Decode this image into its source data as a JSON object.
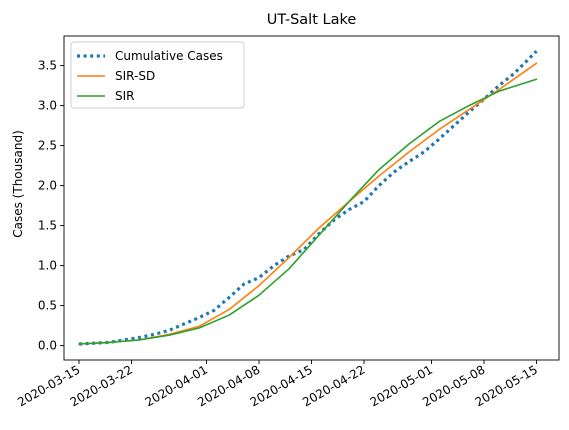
{
  "chart_data": {
    "type": "line",
    "title": "UT-Salt Lake",
    "xlabel": "",
    "ylabel": "Cases (Thousand)",
    "xlim": [
      "2020-03-13",
      "2020-05-18"
    ],
    "ylim": [
      -0.18,
      3.87
    ],
    "grid": false,
    "legend_position": "top-left",
    "x_ticks": [
      "2020-03-15",
      "2020-03-22",
      "2020-04-01",
      "2020-04-08",
      "2020-04-15",
      "2020-04-22",
      "2020-05-01",
      "2020-05-08",
      "2020-05-15"
    ],
    "y_ticks": [
      "0.0",
      "0.5",
      "1.0",
      "1.5",
      "2.0",
      "2.5",
      "3.0",
      "3.5"
    ],
    "series": [
      {
        "name": "Cumulative Cases",
        "color": "#1f77b4",
        "style": "dotted",
        "x": [
          "2020-03-15",
          "2020-03-17",
          "2020-03-19",
          "2020-03-21",
          "2020-03-23",
          "2020-03-25",
          "2020-03-27",
          "2020-03-29",
          "2020-03-31",
          "2020-04-02",
          "2020-04-04",
          "2020-04-06",
          "2020-04-08",
          "2020-04-10",
          "2020-04-12",
          "2020-04-14",
          "2020-04-16",
          "2020-04-18",
          "2020-04-20",
          "2020-04-22",
          "2020-04-24",
          "2020-04-26",
          "2020-04-28",
          "2020-04-30",
          "2020-05-02",
          "2020-05-04",
          "2020-05-06",
          "2020-05-08",
          "2020-05-10",
          "2020-05-12",
          "2020-05-15"
        ],
        "values": [
          0.02,
          0.03,
          0.04,
          0.07,
          0.1,
          0.14,
          0.19,
          0.27,
          0.35,
          0.44,
          0.6,
          0.77,
          0.85,
          1.0,
          1.12,
          1.2,
          1.4,
          1.57,
          1.7,
          1.8,
          2.0,
          2.17,
          2.3,
          2.42,
          2.58,
          2.75,
          2.92,
          3.08,
          3.25,
          3.4,
          3.68
        ]
      },
      {
        "name": "SIR-SD",
        "color": "#ff7f0e",
        "style": "solid",
        "x": [
          "2020-03-15",
          "2020-03-19",
          "2020-03-23",
          "2020-03-27",
          "2020-03-31",
          "2020-04-04",
          "2020-04-08",
          "2020-04-12",
          "2020-04-16",
          "2020-04-20",
          "2020-04-24",
          "2020-04-28",
          "2020-05-02",
          "2020-05-06",
          "2020-05-10",
          "2020-05-15"
        ],
        "values": [
          0.02,
          0.04,
          0.07,
          0.14,
          0.24,
          0.45,
          0.75,
          1.1,
          1.47,
          1.8,
          2.12,
          2.42,
          2.7,
          2.95,
          3.2,
          3.53
        ]
      },
      {
        "name": "SIR",
        "color": "#2ca02c",
        "style": "solid",
        "x": [
          "2020-03-15",
          "2020-03-19",
          "2020-03-23",
          "2020-03-27",
          "2020-03-31",
          "2020-04-04",
          "2020-04-08",
          "2020-04-12",
          "2020-04-16",
          "2020-04-20",
          "2020-04-24",
          "2020-04-28",
          "2020-05-02",
          "2020-05-06",
          "2020-05-10",
          "2020-05-15"
        ],
        "values": [
          0.02,
          0.04,
          0.07,
          0.13,
          0.22,
          0.38,
          0.63,
          0.96,
          1.38,
          1.8,
          2.2,
          2.52,
          2.8,
          3.0,
          3.18,
          3.33
        ]
      }
    ]
  }
}
